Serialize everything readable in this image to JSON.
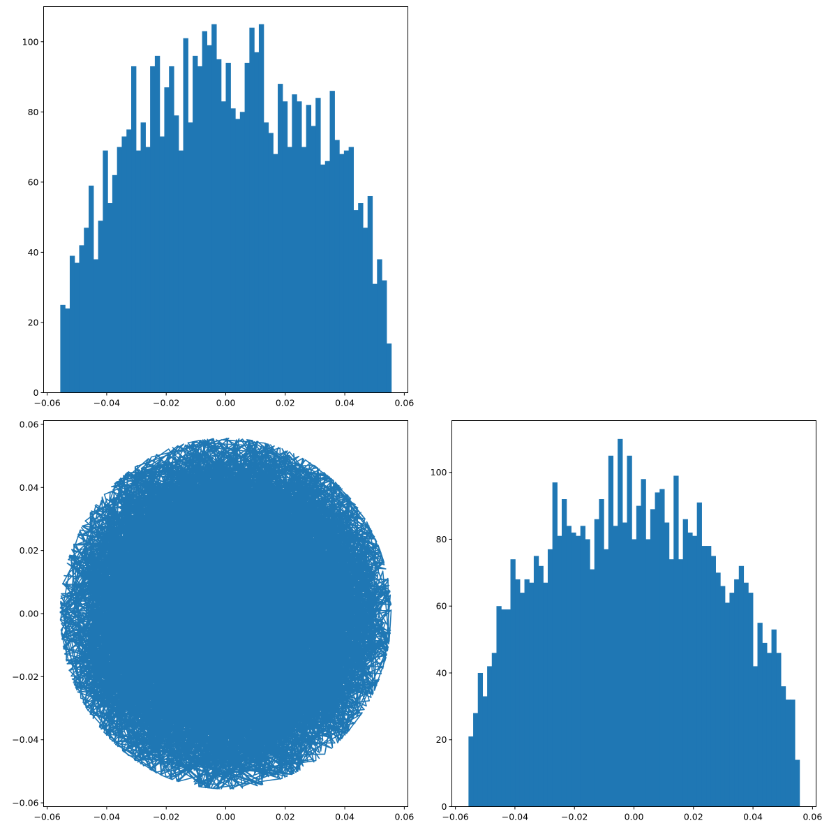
{
  "chart_data": [
    {
      "type": "bar",
      "subtype": "histogram",
      "panel": "top-left",
      "title": "",
      "xlabel": "",
      "ylabel": "",
      "color": "#1f77b4",
      "xlim": [
        -0.0612,
        0.0612
      ],
      "ylim": [
        0,
        110
      ],
      "xticks": [
        -0.06,
        -0.04,
        -0.02,
        0.0,
        0.02,
        0.04,
        0.06
      ],
      "xtick_labels": [
        "−0.06",
        "−0.04",
        "−0.02",
        "0.00",
        "0.02",
        "0.04",
        "0.06"
      ],
      "yticks": [
        0,
        20,
        40,
        60,
        80,
        100
      ],
      "ytick_labels": [
        "0",
        "20",
        "40",
        "60",
        "80",
        "100"
      ],
      "bin_range": [
        -0.0556,
        0.0556
      ],
      "values": [
        25,
        24,
        39,
        37,
        42,
        47,
        59,
        38,
        49,
        69,
        54,
        62,
        70,
        73,
        75,
        93,
        69,
        77,
        70,
        93,
        96,
        73,
        87,
        93,
        79,
        69,
        101,
        77,
        96,
        93,
        103,
        99,
        105,
        95,
        83,
        94,
        81,
        78,
        80,
        94,
        104,
        97,
        105,
        77,
        74,
        68,
        88,
        83,
        70,
        85,
        83,
        70,
        82,
        76,
        84,
        65,
        66,
        86,
        72,
        68,
        69,
        70,
        52,
        54,
        47,
        56,
        31,
        38,
        32,
        14
      ]
    },
    {
      "type": "line",
      "subtype": "trajectory",
      "panel": "bottom-left",
      "title": "",
      "xlabel": "",
      "ylabel": "",
      "color": "#1f77b4",
      "xlim": [
        -0.0612,
        0.0612
      ],
      "ylim": [
        -0.0612,
        0.0612
      ],
      "xticks": [
        -0.06,
        -0.04,
        -0.02,
        0.0,
        0.02,
        0.04,
        0.06
      ],
      "xtick_labels": [
        "−0.06",
        "−0.04",
        "−0.02",
        "0.00",
        "0.02",
        "0.04",
        "0.06"
      ],
      "yticks": [
        -0.06,
        -0.04,
        -0.02,
        0.0,
        0.02,
        0.04,
        0.06
      ],
      "ytick_labels": [
        "−0.06",
        "−0.04",
        "−0.02",
        "0.00",
        "0.02",
        "0.04",
        "0.06"
      ],
      "radius": 0.0556,
      "points": 5000
    },
    {
      "type": "bar",
      "subtype": "histogram",
      "panel": "bottom-right",
      "title": "",
      "xlabel": "",
      "ylabel": "",
      "color": "#1f77b4",
      "xlim": [
        -0.0612,
        0.0612
      ],
      "ylim": [
        0,
        115.5
      ],
      "xticks": [
        -0.06,
        -0.04,
        -0.02,
        0.0,
        0.02,
        0.04,
        0.06
      ],
      "xtick_labels": [
        "−0.06",
        "−0.04",
        "−0.02",
        "0.00",
        "0.02",
        "0.04",
        "0.06"
      ],
      "yticks": [
        0,
        20,
        40,
        60,
        80,
        100
      ],
      "ytick_labels": [
        "0",
        "20",
        "40",
        "60",
        "80",
        "100"
      ],
      "bin_range": [
        -0.0556,
        0.0556
      ],
      "values": [
        21,
        28,
        40,
        33,
        42,
        46,
        60,
        59,
        59,
        74,
        68,
        64,
        68,
        67,
        75,
        72,
        67,
        77,
        97,
        81,
        92,
        84,
        82,
        81,
        84,
        80,
        71,
        86,
        92,
        77,
        105,
        84,
        110,
        85,
        105,
        80,
        90,
        98,
        80,
        89,
        94,
        95,
        85,
        74,
        99,
        74,
        86,
        82,
        81,
        91,
        78,
        78,
        75,
        70,
        66,
        61,
        64,
        68,
        72,
        67,
        64,
        42,
        55,
        49,
        46,
        53,
        46,
        36,
        32,
        32,
        14
      ]
    }
  ]
}
